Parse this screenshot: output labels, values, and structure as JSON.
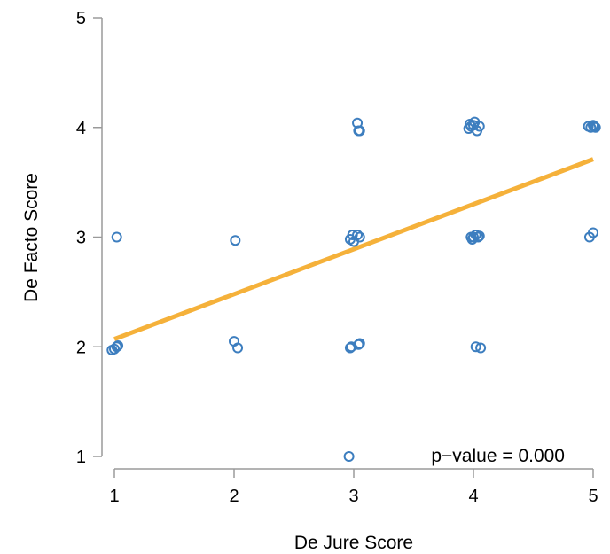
{
  "chart_data": {
    "type": "scatter",
    "title": "",
    "xlabel": "De Jure Score",
    "ylabel": "De Facto Score",
    "xlim": [
      1,
      5
    ],
    "ylim": [
      1,
      5
    ],
    "xticks": [
      "1",
      "2",
      "3",
      "4",
      "5"
    ],
    "yticks": [
      "1",
      "2",
      "3",
      "4",
      "5"
    ],
    "grid": false,
    "annotation": "p−value = 0.000",
    "colors": {
      "points": "#3d7ebf",
      "fit_line": "#f5b13a",
      "axis": "#9a9a9a"
    },
    "fit_line": {
      "x": [
        1,
        5
      ],
      "y": [
        2.07,
        3.71
      ]
    },
    "points": [
      {
        "x": 0.98,
        "y": 1.97
      },
      {
        "x": 1.0,
        "y": 1.98
      },
      {
        "x": 1.02,
        "y": 2.0
      },
      {
        "x": 1.03,
        "y": 2.01
      },
      {
        "x": 1.02,
        "y": 3.0
      },
      {
        "x": 2.0,
        "y": 2.05
      },
      {
        "x": 2.03,
        "y": 1.99
      },
      {
        "x": 2.01,
        "y": 2.97
      },
      {
        "x": 2.96,
        "y": 1.0
      },
      {
        "x": 2.97,
        "y": 1.99
      },
      {
        "x": 2.98,
        "y": 2.0
      },
      {
        "x": 3.04,
        "y": 2.02
      },
      {
        "x": 3.05,
        "y": 2.03
      },
      {
        "x": 2.97,
        "y": 2.98
      },
      {
        "x": 2.99,
        "y": 3.02
      },
      {
        "x": 3.0,
        "y": 2.96
      },
      {
        "x": 3.03,
        "y": 3.02
      },
      {
        "x": 3.05,
        "y": 3.0
      },
      {
        "x": 3.03,
        "y": 4.04
      },
      {
        "x": 3.04,
        "y": 3.97
      },
      {
        "x": 3.05,
        "y": 3.97
      },
      {
        "x": 3.98,
        "y": 3.0
      },
      {
        "x": 3.99,
        "y": 2.98
      },
      {
        "x": 4.0,
        "y": 3.0
      },
      {
        "x": 4.02,
        "y": 3.02
      },
      {
        "x": 4.04,
        "y": 3.0
      },
      {
        "x": 4.05,
        "y": 3.01
      },
      {
        "x": 3.96,
        "y": 3.99
      },
      {
        "x": 3.97,
        "y": 4.03
      },
      {
        "x": 3.98,
        "y": 4.01
      },
      {
        "x": 4.0,
        "y": 4.02
      },
      {
        "x": 4.01,
        "y": 4.05
      },
      {
        "x": 4.03,
        "y": 3.97
      },
      {
        "x": 4.05,
        "y": 4.01
      },
      {
        "x": 4.02,
        "y": 2.0
      },
      {
        "x": 4.06,
        "y": 1.99
      },
      {
        "x": 4.96,
        "y": 4.01
      },
      {
        "x": 4.98,
        "y": 4.0
      },
      {
        "x": 5.0,
        "y": 4.02
      },
      {
        "x": 5.01,
        "y": 4.01
      },
      {
        "x": 5.02,
        "y": 4.0
      },
      {
        "x": 4.97,
        "y": 3.0
      },
      {
        "x": 5.0,
        "y": 3.04
      }
    ]
  }
}
